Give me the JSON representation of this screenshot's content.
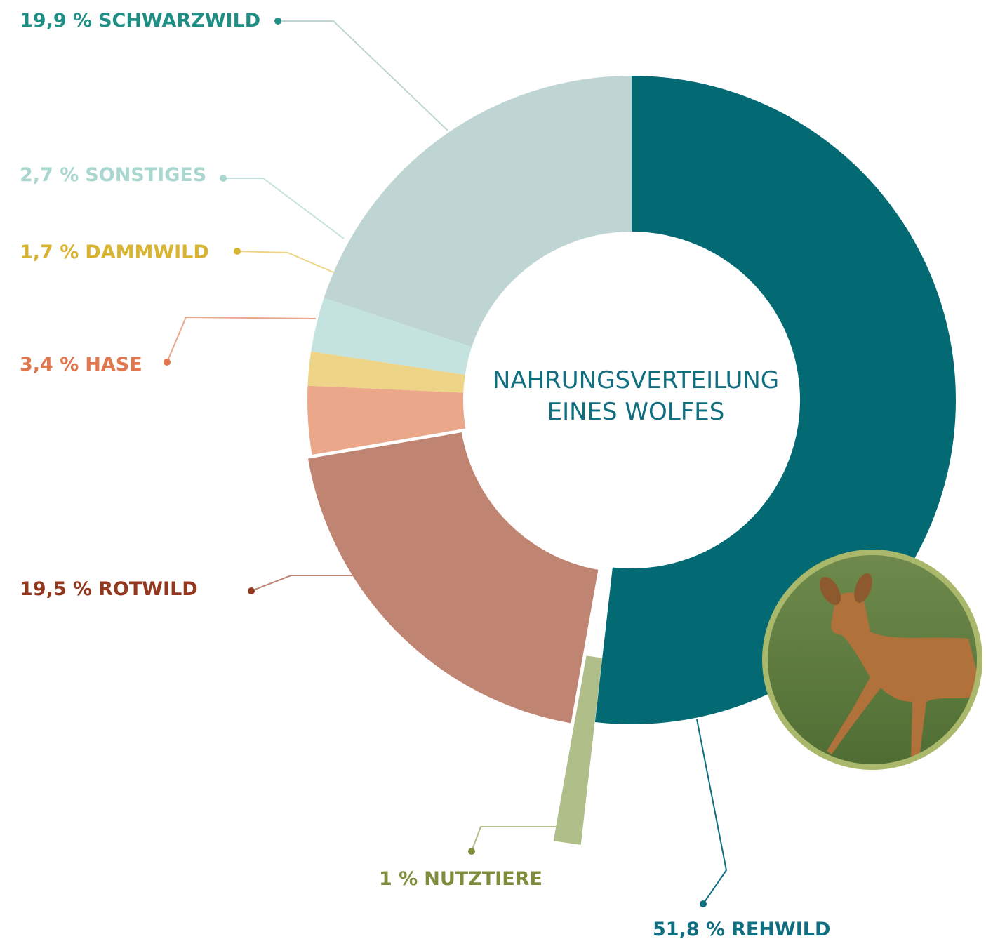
{
  "chart_data": {
    "type": "donut",
    "title": [
      "NAHRUNGSVERTEILUNG",
      "EINES WOLFES"
    ],
    "categories": [
      "REHWILD",
      "NUTZTIERE",
      "ROTWILD",
      "HASE",
      "DAMMWILD",
      "SONSTIGES",
      "SCHWARZWILD"
    ],
    "values": [
      51.8,
      1,
      19.5,
      3.4,
      1.7,
      2.7,
      19.9
    ],
    "value_labels": [
      "51,8 %",
      "1 %",
      "19,5 %",
      "3,4 %",
      "1,7 %",
      "2,7 %",
      "19,9 %"
    ],
    "colors": [
      "#036a73",
      "#b0be8a",
      "#bf8572",
      "#eaa78a",
      "#edd487",
      "#c4e3df",
      "#bfd5d4"
    ],
    "label_colors": [
      "#0f6e80",
      "#7f8e3d",
      "#93381f",
      "#e0774f",
      "#d9b431",
      "#a9d6cf",
      "#1f8f86"
    ]
  }
}
